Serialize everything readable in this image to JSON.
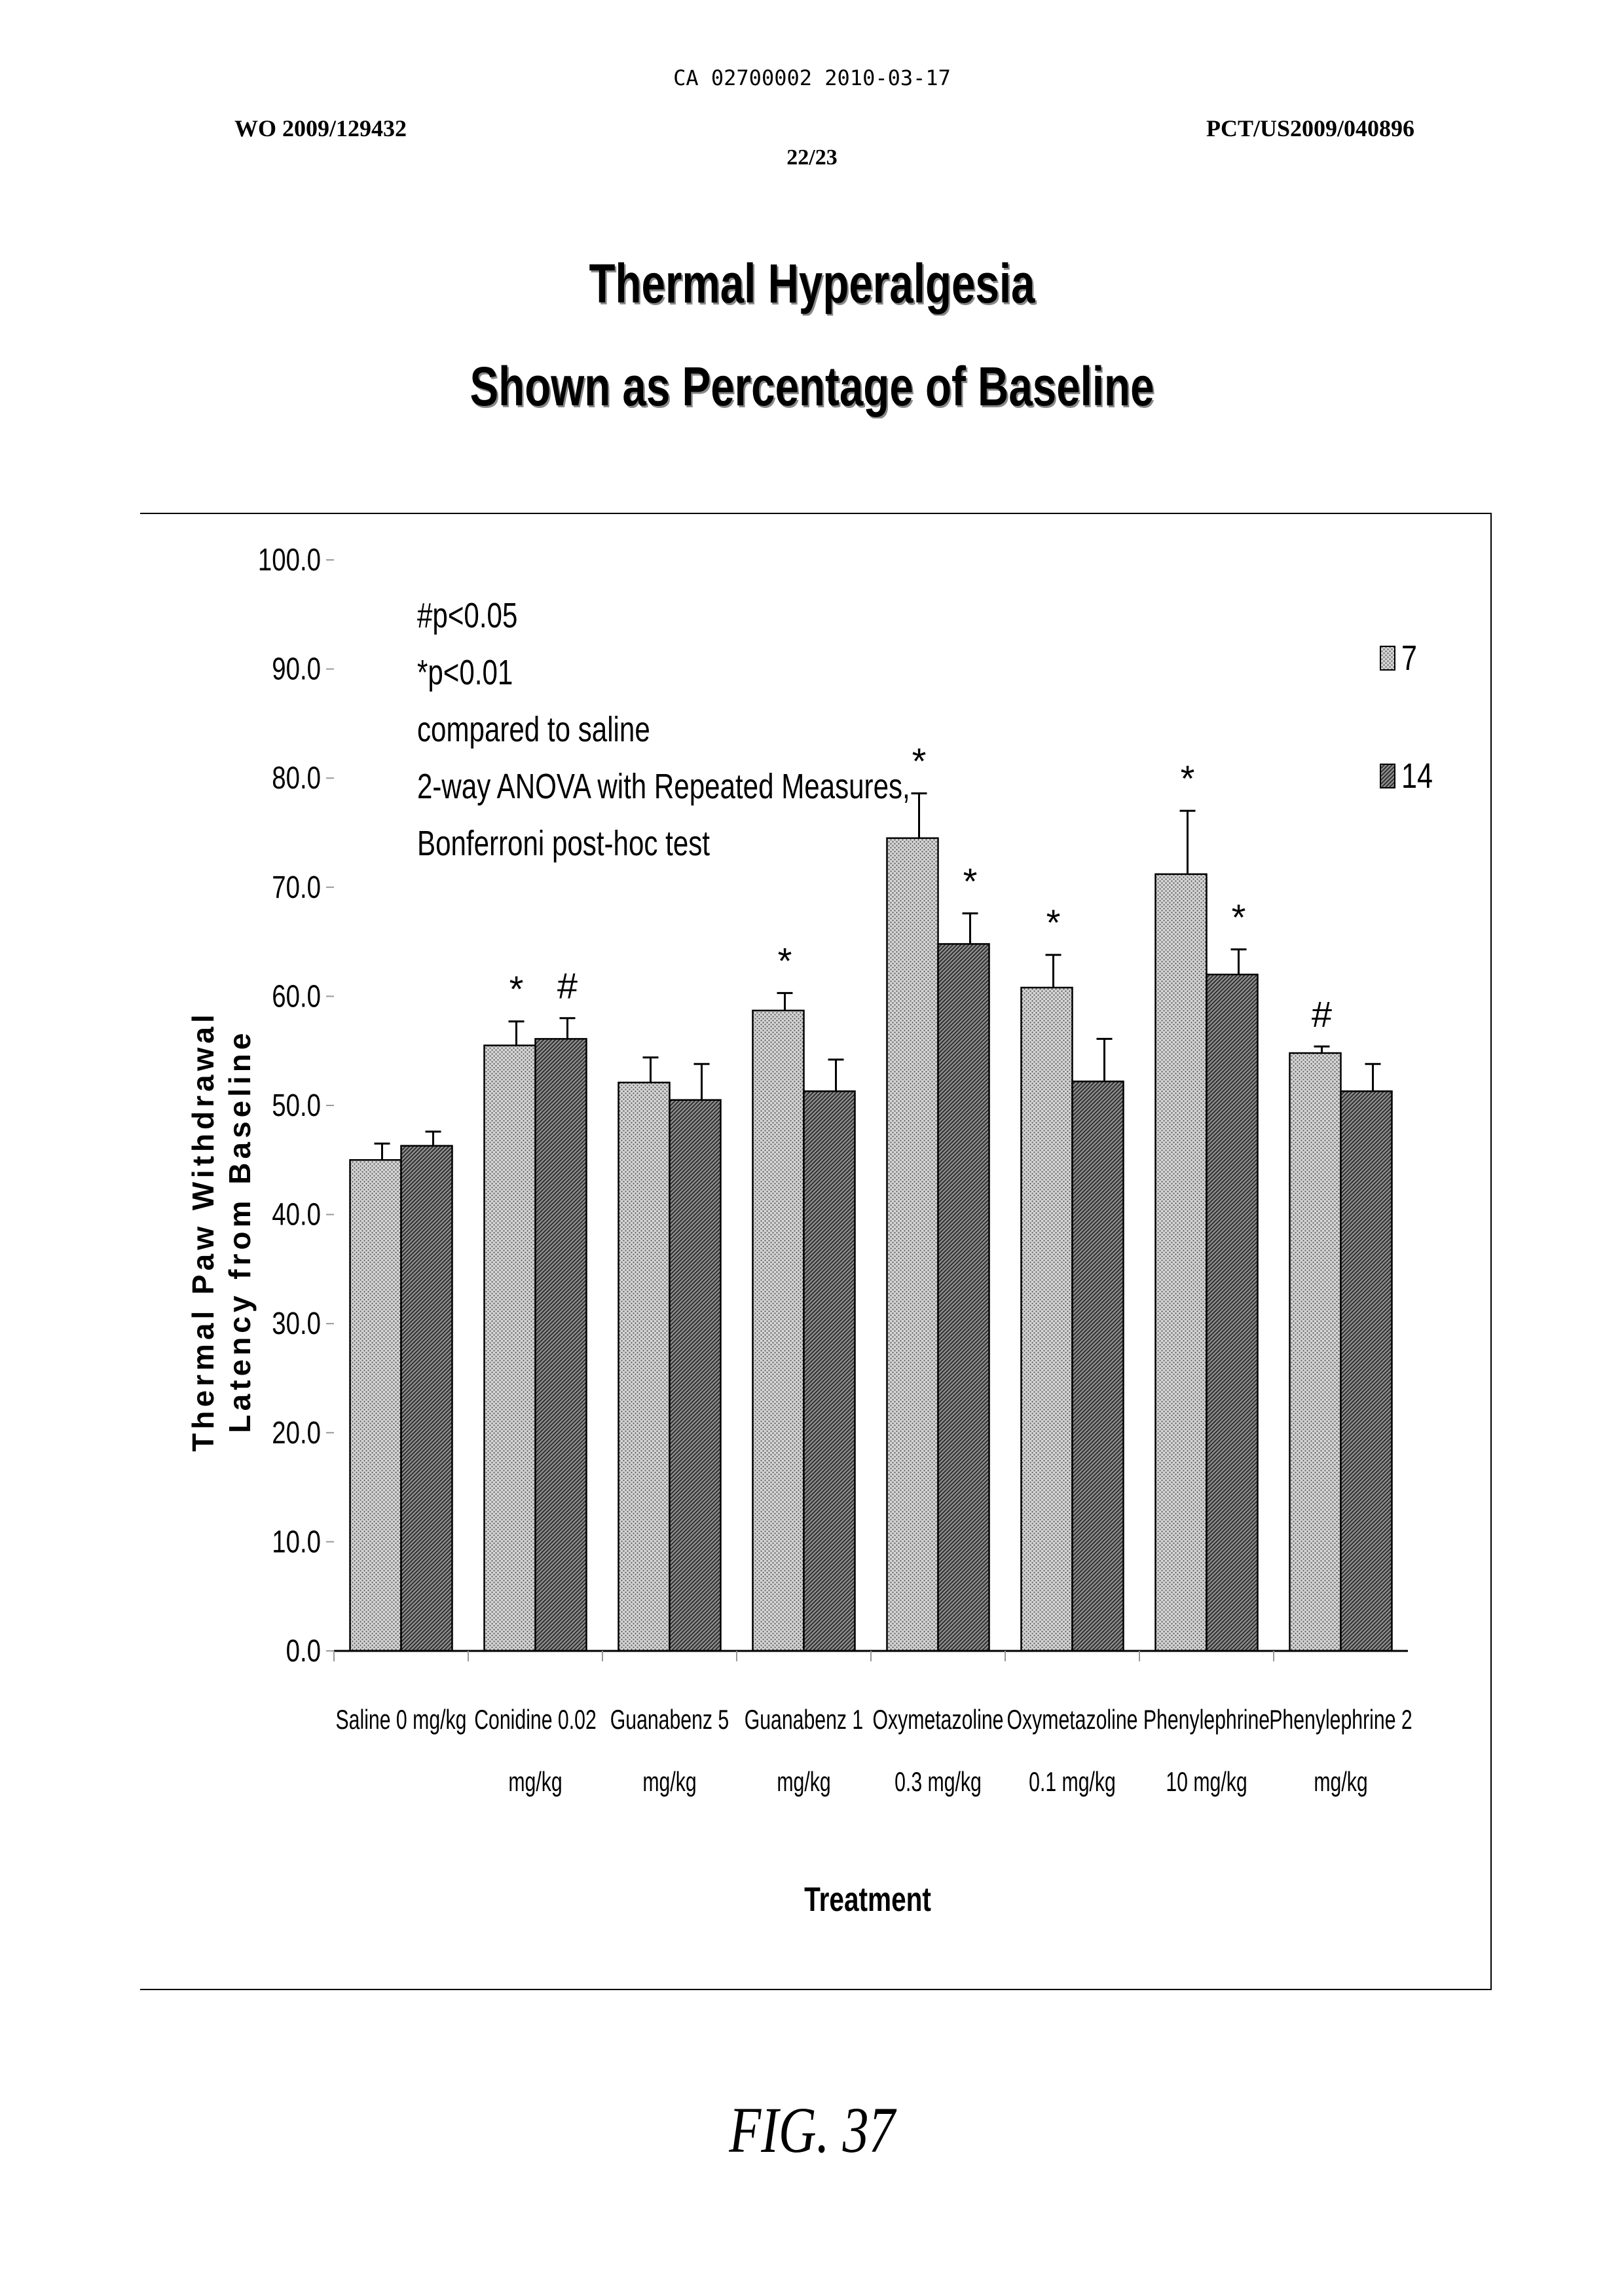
{
  "header": {
    "ca_code": "CA 02700002 2010-03-17",
    "wo_number": "WO 2009/129432",
    "pct_number": "PCT/US2009/040896",
    "sheet": "22/23"
  },
  "figure_label": "FIG. 37",
  "chart_data": {
    "type": "bar",
    "title": [
      "Thermal Hyperalgesia",
      "Shown as Percentage of Baseline"
    ],
    "xlabel": "Treatment",
    "ylabel": [
      "Thermal Paw Withdrawal",
      "Latency from Baseline"
    ],
    "ylim": [
      0,
      100
    ],
    "yticks": [
      "0.0",
      "10.0",
      "20.0",
      "30.0",
      "40.0",
      "50.0",
      "60.0",
      "70.0",
      "80.0",
      "90.0",
      "100.0"
    ],
    "categories": [
      [
        "Saline 0 mg/kg"
      ],
      [
        "Conidine 0.02",
        "mg/kg"
      ],
      [
        "Guanabenz 5",
        "mg/kg"
      ],
      [
        "Guanabenz 1",
        "mg/kg"
      ],
      [
        "Oxymetazoline",
        "0.3 mg/kg"
      ],
      [
        "Oxymetazoline",
        "0.1 mg/kg"
      ],
      [
        "Phenylephrine",
        "10 mg/kg"
      ],
      [
        "Phenylephrine 2",
        "mg/kg"
      ]
    ],
    "series": [
      {
        "name": "7",
        "values": [
          45.0,
          55.5,
          52.1,
          58.7,
          74.5,
          60.8,
          71.2,
          54.8
        ],
        "errors": [
          1.5,
          2.2,
          2.3,
          1.6,
          4.1,
          3.0,
          5.8,
          0.6
        ],
        "markers": [
          "",
          "*",
          "",
          "*",
          "*",
          "*",
          "*",
          "#"
        ]
      },
      {
        "name": "14",
        "values": [
          46.3,
          56.1,
          50.5,
          51.3,
          64.8,
          52.2,
          62.0,
          51.3
        ],
        "errors": [
          1.3,
          1.9,
          3.3,
          2.9,
          2.8,
          3.9,
          2.3,
          2.5
        ],
        "markers": [
          "",
          "#",
          "",
          "",
          "*",
          "",
          "*",
          ""
        ]
      }
    ],
    "annotation": [
      "#p<0.05",
      "*p<0.01",
      "compared to saline",
      "2-way ANOVA with Repeated Measures,",
      "Bonferroni post-hoc test"
    ],
    "legend_position": "right",
    "grid": false
  }
}
